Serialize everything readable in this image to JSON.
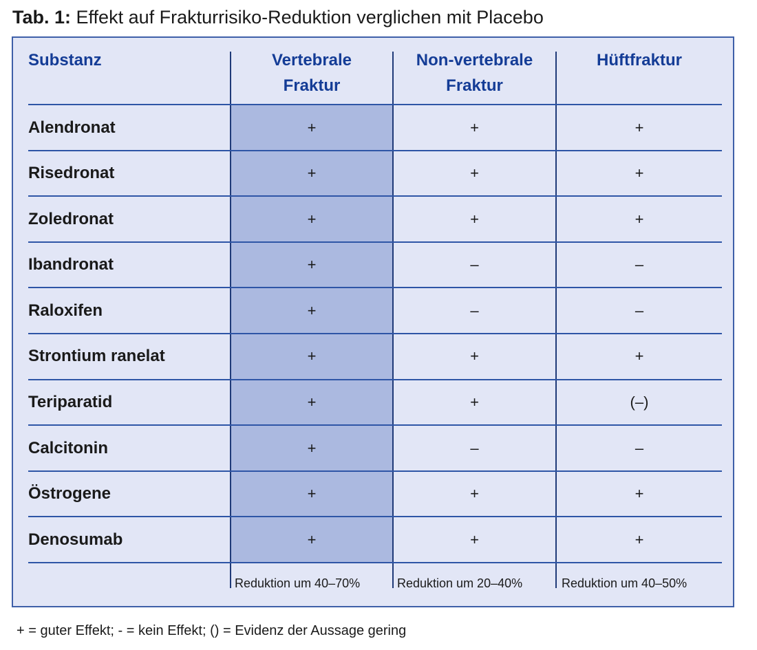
{
  "caption": {
    "label": "Tab. 1:",
    "text": "Effekt auf Frakturrisiko-Reduktion verglichen mit Placebo"
  },
  "table": {
    "headers": {
      "substance": "Substanz",
      "vertebral_line1": "Vertebrale",
      "vertebral_line2": "Fraktur",
      "nonvertebral_line1": "Non-vertebrale",
      "nonvertebral_line2": "Fraktur",
      "hip": "Hüftfraktur"
    },
    "rows": [
      {
        "name": "Alendronat",
        "vertebral": "+",
        "nonvertebral": "+",
        "hip": "+"
      },
      {
        "name": "Risedronat",
        "vertebral": "+",
        "nonvertebral": "+",
        "hip": "+"
      },
      {
        "name": "Zoledronat",
        "vertebral": "+",
        "nonvertebral": "+",
        "hip": "+"
      },
      {
        "name": "Ibandronat",
        "vertebral": "+",
        "nonvertebral": "–",
        "hip": "–"
      },
      {
        "name": "Raloxifen",
        "vertebral": "+",
        "nonvertebral": "–",
        "hip": "–"
      },
      {
        "name": "Strontium ranelat",
        "vertebral": "+",
        "nonvertebral": "+",
        "hip": "+"
      },
      {
        "name": "Teriparatid",
        "vertebral": "+",
        "nonvertebral": "+",
        "hip": "(–)"
      },
      {
        "name": "Calcitonin",
        "vertebral": "+",
        "nonvertebral": "–",
        "hip": "–"
      },
      {
        "name": "Östrogene",
        "vertebral": "+",
        "nonvertebral": "+",
        "hip": "+"
      },
      {
        "name": "Denosumab",
        "vertebral": "+",
        "nonvertebral": "+",
        "hip": "+"
      }
    ],
    "footer": {
      "vertebral": "Reduktion um 40–70%",
      "nonvertebral": "Reduktion um 20–40%",
      "hip": "Reduktion um 40–50%"
    }
  },
  "legend": "+ = guter Effekt; - = kein Effekt; () = Evidenz der Aussage gering",
  "colors": {
    "frame_fill": "#e2e6f6",
    "highlight_column": "#abb9e0",
    "header_text": "#143c96",
    "border": "#3e5fa8"
  }
}
